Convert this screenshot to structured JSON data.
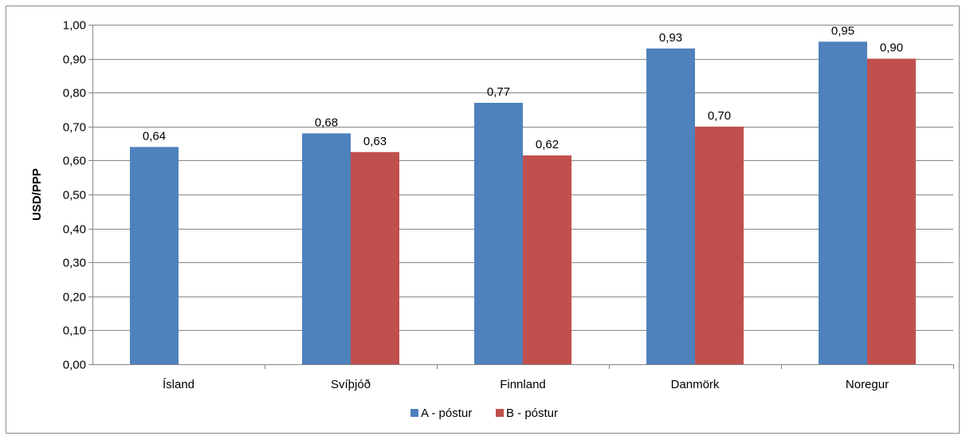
{
  "chart_data": {
    "type": "bar",
    "title": "",
    "xlabel": "",
    "ylabel": "USD/PPP",
    "ylim": [
      0,
      1.0
    ],
    "ytick_step": 0.1,
    "ytick_labels": [
      "0,00",
      "0,10",
      "0,20",
      "0,30",
      "0,40",
      "0,50",
      "0,60",
      "0,70",
      "0,80",
      "0,90",
      "1,00"
    ],
    "categories": [
      "Ísland",
      "Svíþjóð",
      "Finnland",
      "Danmörk",
      "Noregur"
    ],
    "series": [
      {
        "name": "A - póstur",
        "color": "#4F81BD",
        "values": [
          0.64,
          0.68,
          0.77,
          0.93,
          0.95
        ],
        "labels": [
          "0,64",
          "0,68",
          "0,77",
          "0,93",
          "0,95"
        ]
      },
      {
        "name": "B - póstur",
        "color": "#C0504D",
        "values": [
          null,
          0.625,
          0.615,
          0.7,
          0.9
        ],
        "labels": [
          null,
          "0,63",
          "0,62",
          "0,70",
          "0,90"
        ]
      }
    ],
    "grid": true,
    "legend_position": "bottom"
  }
}
